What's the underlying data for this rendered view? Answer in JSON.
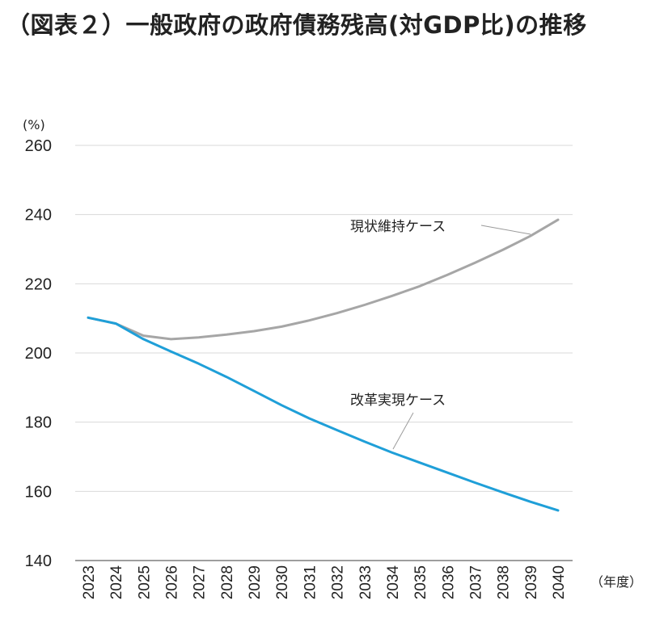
{
  "title": "（図表２）一般政府の政府債務残高(対GDP比)の推移",
  "colors": {
    "status_quo": "#a6a6a6",
    "reform": "#1f9fd8",
    "grid": "#d9d9d9",
    "axis": "#7f7f7f"
  },
  "chart_data": {
    "type": "line",
    "title": "（図表２）一般政府の政府債務残高(対GDP比)の推移",
    "ylabel": "(%)",
    "xlabel": "（年度）",
    "ylim": [
      140,
      260
    ],
    "yticks": [
      "140",
      "160",
      "180",
      "200",
      "220",
      "240",
      "260"
    ],
    "categories": [
      "2023",
      "2024",
      "2025",
      "2026",
      "2027",
      "2028",
      "2029",
      "2030",
      "2031",
      "2032",
      "2033",
      "2034",
      "2035",
      "2036",
      "2037",
      "2038",
      "2039",
      "2040"
    ],
    "grid": true,
    "series": [
      {
        "name": "現状維持ケース",
        "color_key": "status_quo",
        "values": [
          210.2,
          208.5,
          205.0,
          204.0,
          204.5,
          205.3,
          206.3,
          207.6,
          209.4,
          211.5,
          213.9,
          216.5,
          219.3,
          222.6,
          226.1,
          229.8,
          233.8,
          238.5
        ]
      },
      {
        "name": "改革実現ケース",
        "color_key": "reform",
        "values": [
          210.2,
          208.5,
          204.0,
          200.4,
          196.9,
          193.1,
          189.0,
          184.9,
          181.1,
          177.7,
          174.4,
          171.2,
          168.3,
          165.4,
          162.5,
          159.7,
          157.0,
          154.5
        ]
      }
    ],
    "annotations": [
      {
        "text": "現状維持ケース",
        "series": "現状維持ケース"
      },
      {
        "text": "改革実現ケース",
        "series": "改革実現ケース"
      }
    ]
  }
}
